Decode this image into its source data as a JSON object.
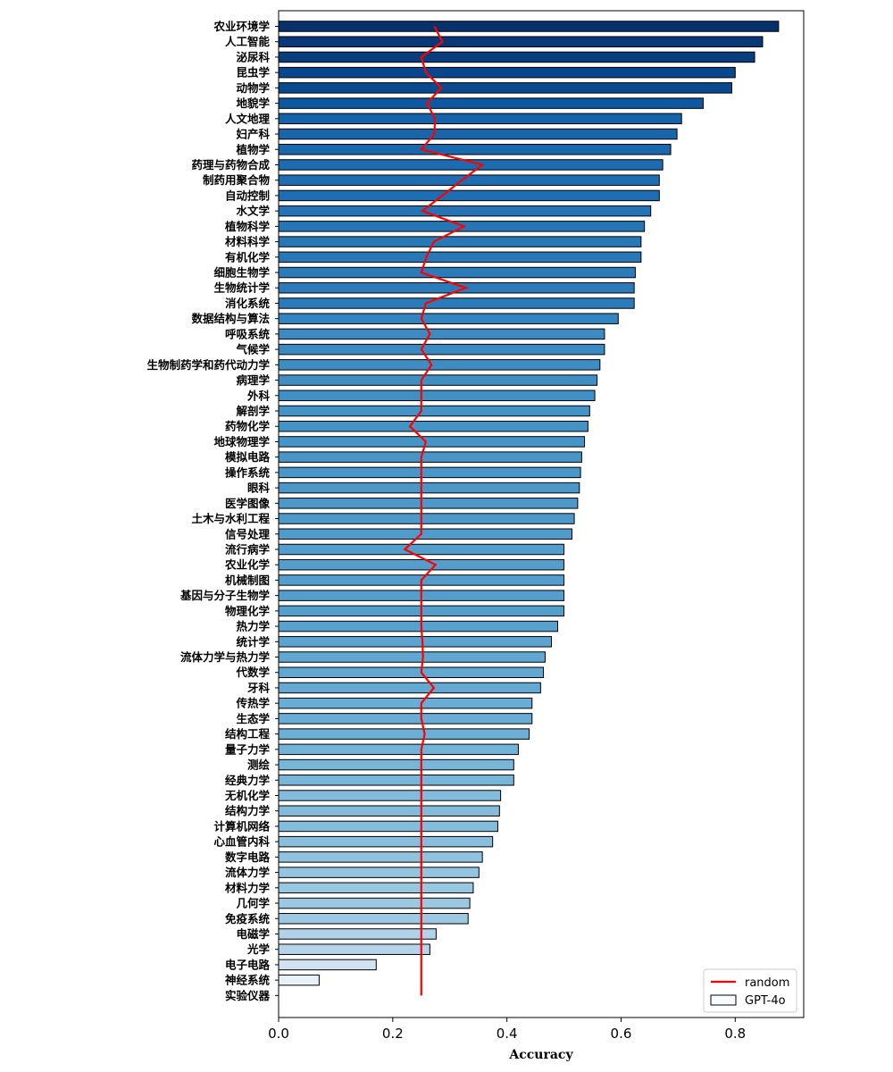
{
  "chart_data": {
    "type": "bar",
    "orientation": "horizontal",
    "xlabel": "Accuracy",
    "xlim": [
      0,
      0.92
    ],
    "xticks": [
      0.0,
      0.2,
      0.4,
      0.6,
      0.8
    ],
    "grid": false,
    "legend_position": "bottom-right",
    "categories": [
      "农业环境学",
      "人工智能",
      "泌尿科",
      "昆虫学",
      "动物学",
      "地貌学",
      "人文地理",
      "妇产科",
      "植物学",
      "药理与药物合成",
      "制药用聚合物",
      "自动控制",
      "水文学",
      "植物科学",
      "材料科学",
      "有机化学",
      "细胞生物学",
      "生物统计学",
      "消化系统",
      "数据结构与算法",
      "呼吸系统",
      "气候学",
      "生物制药学和药代动力学",
      "病理学",
      "外科",
      "解剖学",
      "药物化学",
      "地球物理学",
      "模拟电路",
      "操作系统",
      "眼科",
      "医学图像",
      "土木与水利工程",
      "信号处理",
      "流行病学",
      "农业化学",
      "机械制图",
      "基因与分子生物学",
      "物理化学",
      "热力学",
      "统计学",
      "流体力学与热力学",
      "代数学",
      "牙科",
      "传热学",
      "生态学",
      "结构工程",
      "量子力学",
      "测绘",
      "经典力学",
      "无机化学",
      "结构力学",
      "计算机网络",
      "心血管内科",
      "数字电路",
      "流体力学",
      "材料力学",
      "几何学",
      "免疫系统",
      "电磁学",
      "光学",
      "电子电路",
      "神经系统",
      "实验仪器"
    ],
    "series": [
      {
        "name": "GPT-4o",
        "type": "bar",
        "values": [
          0.876,
          0.848,
          0.834,
          0.8,
          0.794,
          0.744,
          0.706,
          0.698,
          0.687,
          0.673,
          0.667,
          0.667,
          0.652,
          0.641,
          0.635,
          0.635,
          0.625,
          0.623,
          0.623,
          0.595,
          0.571,
          0.571,
          0.563,
          0.558,
          0.554,
          0.545,
          0.542,
          0.536,
          0.531,
          0.529,
          0.527,
          0.524,
          0.518,
          0.514,
          0.5,
          0.5,
          0.5,
          0.5,
          0.5,
          0.489,
          0.478,
          0.467,
          0.464,
          0.459,
          0.444,
          0.444,
          0.439,
          0.42,
          0.412,
          0.412,
          0.389,
          0.387,
          0.384,
          0.375,
          0.357,
          0.351,
          0.341,
          0.335,
          0.332,
          0.276,
          0.265,
          0.171,
          0.071,
          0.0
        ]
      },
      {
        "name": "random",
        "type": "line",
        "color": "#ff0000",
        "values": [
          0.273,
          0.287,
          0.25,
          0.258,
          0.285,
          0.26,
          0.274,
          0.273,
          0.25,
          0.357,
          0.321,
          0.287,
          0.252,
          0.325,
          0.272,
          0.259,
          0.25,
          0.328,
          0.258,
          0.25,
          0.265,
          0.25,
          0.268,
          0.25,
          0.25,
          0.25,
          0.23,
          0.258,
          0.25,
          0.25,
          0.25,
          0.25,
          0.25,
          0.25,
          0.221,
          0.275,
          0.25,
          0.25,
          0.25,
          0.25,
          0.252,
          0.253,
          0.25,
          0.272,
          0.25,
          0.25,
          0.256,
          0.25,
          0.25,
          0.25,
          0.25,
          0.25,
          0.25,
          0.25,
          0.25,
          0.25,
          0.25,
          0.25,
          0.25,
          0.25,
          0.25,
          0.25,
          0.25,
          0.25
        ]
      }
    ]
  }
}
